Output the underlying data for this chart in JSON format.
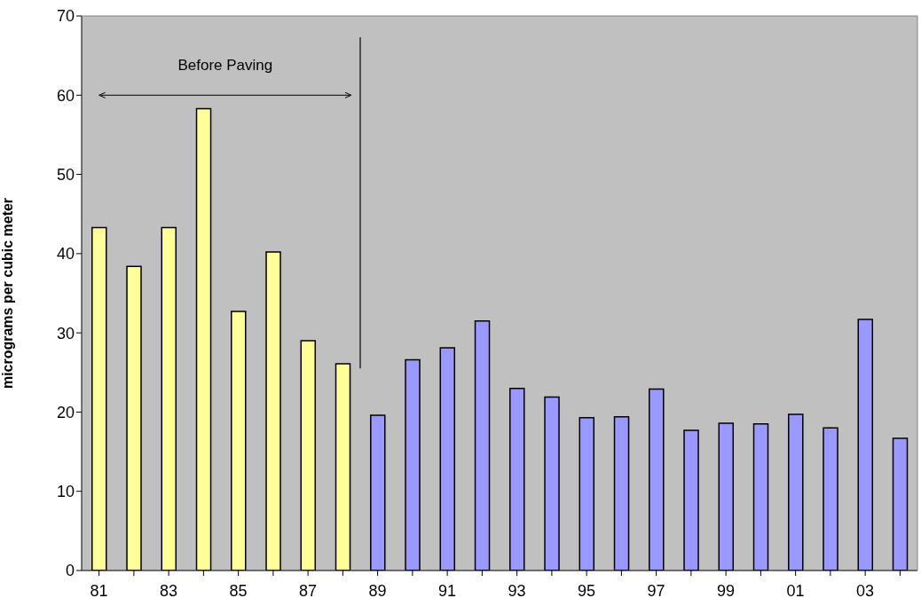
{
  "chart_data": {
    "type": "bar",
    "categories": [
      "81",
      null,
      "83",
      null,
      "85",
      null,
      "87",
      null,
      "89",
      null,
      "91",
      null,
      "93",
      null,
      "95",
      null,
      "97",
      null,
      "99",
      null,
      "01",
      null,
      "03",
      null
    ],
    "values": [
      43.3,
      38.4,
      43.3,
      58.3,
      32.7,
      40.2,
      29.0,
      26.1,
      19.6,
      26.6,
      28.1,
      31.5,
      23.0,
      21.9,
      19.3,
      19.4,
      22.9,
      17.7,
      18.6,
      18.5,
      19.7,
      18.0,
      31.7,
      16.7
    ],
    "colors": [
      "#ffff99",
      "#ffff99",
      "#ffff99",
      "#ffff99",
      "#ffff99",
      "#ffff99",
      "#ffff99",
      "#ffff99",
      "#9999ff",
      "#9999ff",
      "#9999ff",
      "#9999ff",
      "#9999ff",
      "#9999ff",
      "#9999ff",
      "#9999ff",
      "#9999ff",
      "#9999ff",
      "#9999ff",
      "#9999ff",
      "#9999ff",
      "#9999ff",
      "#9999ff",
      "#9999ff"
    ],
    "ylabel": "micrograms per cubic meter",
    "ylim": [
      0,
      70
    ],
    "yticks": [
      0,
      10,
      20,
      30,
      40,
      50,
      60,
      70
    ],
    "annotations": [
      "Before Paving"
    ],
    "grid": false
  }
}
